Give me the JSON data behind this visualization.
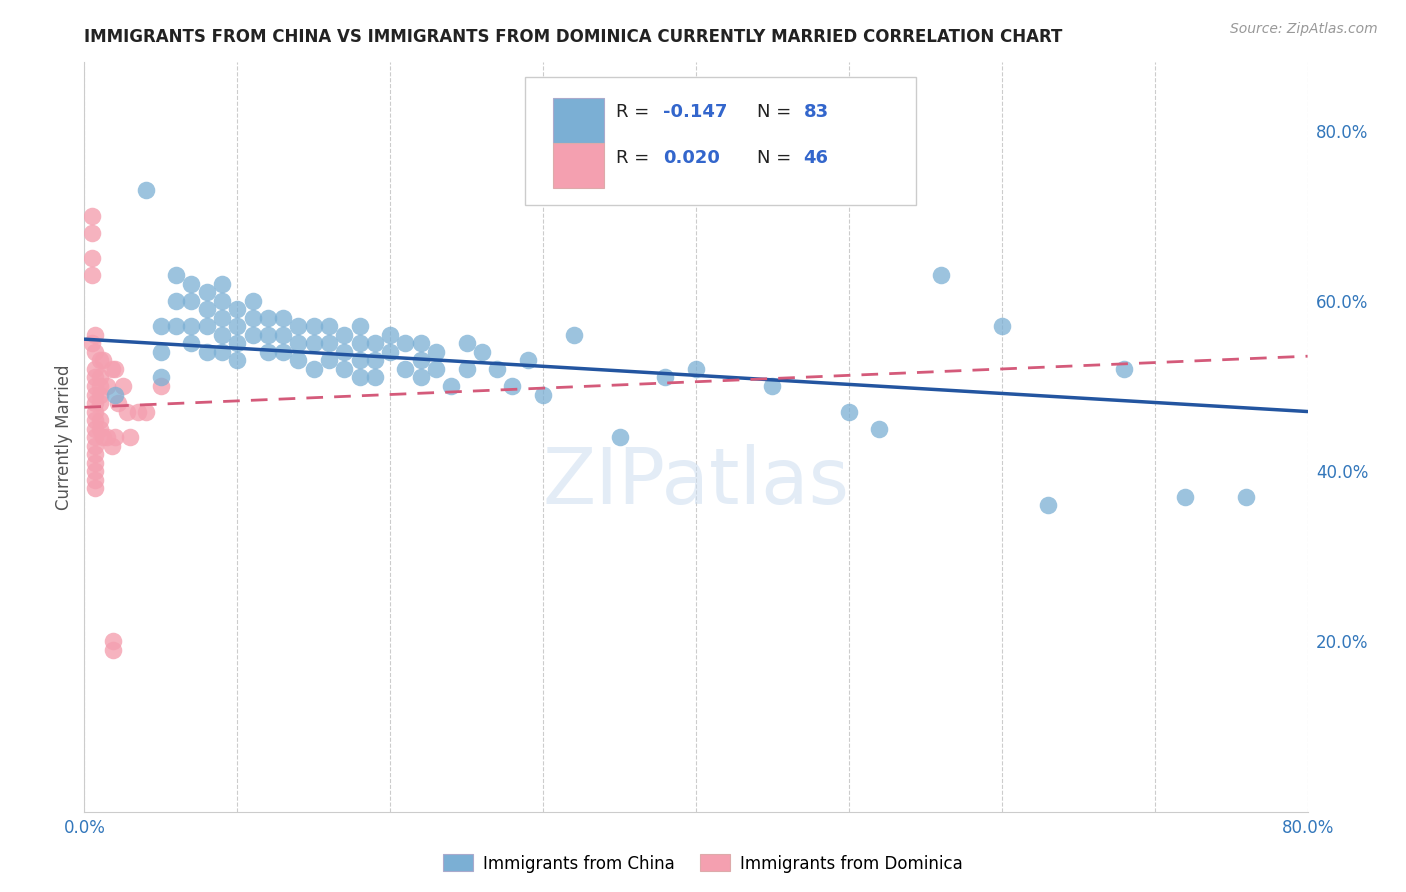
{
  "title": "IMMIGRANTS FROM CHINA VS IMMIGRANTS FROM DOMINICA CURRENTLY MARRIED CORRELATION CHART",
  "source": "Source: ZipAtlas.com",
  "ylabel": "Currently Married",
  "xlim": [
    0.0,
    0.8
  ],
  "ylim": [
    0.0,
    0.88
  ],
  "xticks": [
    0.0,
    0.1,
    0.2,
    0.3,
    0.4,
    0.5,
    0.6,
    0.7,
    0.8
  ],
  "xticklabels": [
    "0.0%",
    "",
    "",
    "",
    "",
    "",
    "",
    "",
    "80.0%"
  ],
  "yticks_right": [
    0.2,
    0.4,
    0.6,
    0.8
  ],
  "ytick_right_labels": [
    "20.0%",
    "40.0%",
    "60.0%",
    "80.0%"
  ],
  "china_color": "#7bafd4",
  "dominica_color": "#f4a0b0",
  "china_line_color": "#2355a0",
  "dominica_line_color": "#d45a7a",
  "watermark": "ZIPatlas",
  "china_x": [
    0.02,
    0.04,
    0.05,
    0.05,
    0.05,
    0.06,
    0.06,
    0.06,
    0.07,
    0.07,
    0.07,
    0.07,
    0.08,
    0.08,
    0.08,
    0.08,
    0.09,
    0.09,
    0.09,
    0.09,
    0.09,
    0.1,
    0.1,
    0.1,
    0.1,
    0.11,
    0.11,
    0.11,
    0.12,
    0.12,
    0.12,
    0.13,
    0.13,
    0.13,
    0.14,
    0.14,
    0.14,
    0.15,
    0.15,
    0.15,
    0.16,
    0.16,
    0.16,
    0.17,
    0.17,
    0.17,
    0.18,
    0.18,
    0.18,
    0.18,
    0.19,
    0.19,
    0.19,
    0.2,
    0.2,
    0.21,
    0.21,
    0.22,
    0.22,
    0.22,
    0.23,
    0.23,
    0.24,
    0.25,
    0.25,
    0.26,
    0.27,
    0.28,
    0.29,
    0.3,
    0.32,
    0.35,
    0.38,
    0.4,
    0.45,
    0.5,
    0.52,
    0.56,
    0.6,
    0.63,
    0.68,
    0.72,
    0.76
  ],
  "china_y": [
    0.49,
    0.73,
    0.57,
    0.54,
    0.51,
    0.63,
    0.6,
    0.57,
    0.62,
    0.6,
    0.57,
    0.55,
    0.61,
    0.59,
    0.57,
    0.54,
    0.62,
    0.6,
    0.58,
    0.56,
    0.54,
    0.59,
    0.57,
    0.55,
    0.53,
    0.6,
    0.58,
    0.56,
    0.58,
    0.56,
    0.54,
    0.58,
    0.56,
    0.54,
    0.57,
    0.55,
    0.53,
    0.57,
    0.55,
    0.52,
    0.57,
    0.55,
    0.53,
    0.56,
    0.54,
    0.52,
    0.57,
    0.55,
    0.53,
    0.51,
    0.55,
    0.53,
    0.51,
    0.56,
    0.54,
    0.55,
    0.52,
    0.55,
    0.53,
    0.51,
    0.54,
    0.52,
    0.5,
    0.55,
    0.52,
    0.54,
    0.52,
    0.5,
    0.53,
    0.49,
    0.56,
    0.44,
    0.51,
    0.52,
    0.5,
    0.47,
    0.45,
    0.63,
    0.57,
    0.36,
    0.52,
    0.37,
    0.37
  ],
  "dominica_x": [
    0.005,
    0.005,
    0.005,
    0.005,
    0.005,
    0.007,
    0.007,
    0.007,
    0.007,
    0.007,
    0.007,
    0.007,
    0.007,
    0.007,
    0.007,
    0.007,
    0.007,
    0.007,
    0.007,
    0.007,
    0.007,
    0.007,
    0.01,
    0.01,
    0.01,
    0.01,
    0.01,
    0.01,
    0.01,
    0.012,
    0.012,
    0.015,
    0.015,
    0.018,
    0.018,
    0.02,
    0.02,
    0.022,
    0.025,
    0.028,
    0.03,
    0.035,
    0.04,
    0.05,
    0.019,
    0.019
  ],
  "dominica_y": [
    0.7,
    0.68,
    0.65,
    0.63,
    0.55,
    0.56,
    0.54,
    0.52,
    0.51,
    0.5,
    0.49,
    0.48,
    0.47,
    0.46,
    0.45,
    0.44,
    0.43,
    0.42,
    0.41,
    0.4,
    0.39,
    0.38,
    0.53,
    0.51,
    0.5,
    0.49,
    0.48,
    0.46,
    0.45,
    0.53,
    0.44,
    0.5,
    0.44,
    0.52,
    0.43,
    0.52,
    0.44,
    0.48,
    0.5,
    0.47,
    0.44,
    0.47,
    0.47,
    0.5,
    0.2,
    0.19
  ],
  "china_line_x": [
    0.0,
    0.8
  ],
  "china_line_y": [
    0.555,
    0.47
  ],
  "dominica_line_x": [
    0.0,
    0.8
  ],
  "dominica_line_y": [
    0.475,
    0.535
  ]
}
